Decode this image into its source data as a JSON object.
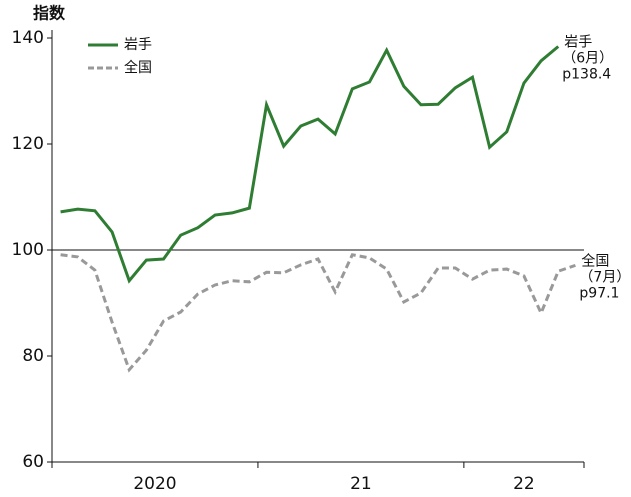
{
  "chart_data": {
    "type": "line",
    "y_axis_label": "指数",
    "categories": [
      null,
      null,
      null,
      null,
      null,
      null,
      null,
      null,
      null,
      null,
      null,
      null,
      null,
      null,
      null,
      null,
      null,
      null,
      null,
      null,
      null,
      null,
      null,
      null,
      null,
      null,
      null,
      null,
      null,
      null,
      null
    ],
    "xlim": [
      0,
      31
    ],
    "xticks": [
      0,
      12,
      24,
      31
    ],
    "period_labels": [
      "2020",
      "21",
      "22"
    ],
    "ylim": [
      60,
      140
    ],
    "yticks": [
      60,
      80,
      100,
      120,
      140
    ],
    "reference_line": 100,
    "series": [
      {
        "name": "岩手",
        "color": "#2e7d32",
        "dashed": false,
        "values": [
          107.2,
          107.7,
          107.4,
          103.4,
          94.2,
          98.1,
          98.3,
          102.8,
          104.2,
          106.6,
          107.0,
          107.9,
          127.4,
          119.6,
          123.4,
          124.7,
          121.9,
          130.4,
          131.7,
          137.7,
          130.9,
          127.4,
          127.5,
          130.6,
          132.6,
          119.4,
          122.3,
          131.5,
          135.7,
          138.4,
          null
        ],
        "annotation": [
          "岩手",
          "（6月）",
          "p138.4"
        ]
      },
      {
        "name": "全国",
        "color": "#999999",
        "dashed": true,
        "values": [
          99.1,
          98.7,
          96.2,
          86.4,
          77.4,
          81.1,
          86.6,
          88.3,
          91.7,
          93.4,
          94.2,
          94.0,
          95.8,
          95.7,
          97.2,
          98.3,
          92.1,
          99.1,
          98.5,
          96.4,
          90.2,
          91.9,
          96.6,
          96.6,
          94.5,
          96.2,
          96.4,
          95.1,
          88.1,
          96.0,
          97.1
        ],
        "annotation": [
          "全国",
          "（7月）",
          "p97.1"
        ]
      }
    ]
  }
}
